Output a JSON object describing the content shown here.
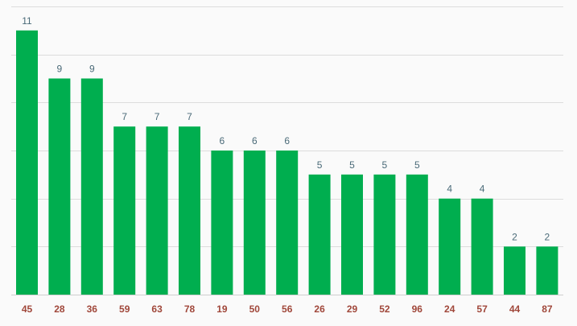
{
  "chart_data": {
    "type": "bar",
    "categories": [
      "45",
      "28",
      "36",
      "59",
      "63",
      "78",
      "19",
      "50",
      "56",
      "26",
      "29",
      "52",
      "96",
      "24",
      "57",
      "44",
      "87"
    ],
    "values": [
      11,
      9,
      9,
      7,
      7,
      7,
      6,
      6,
      6,
      5,
      5,
      5,
      5,
      4,
      4,
      2,
      2
    ],
    "ylim": [
      0,
      12
    ],
    "grid": true,
    "data_labels": true,
    "colors": {
      "bar": "#00ae4f",
      "value_label": "#4a6a78",
      "category_label": "#a0473a"
    }
  }
}
